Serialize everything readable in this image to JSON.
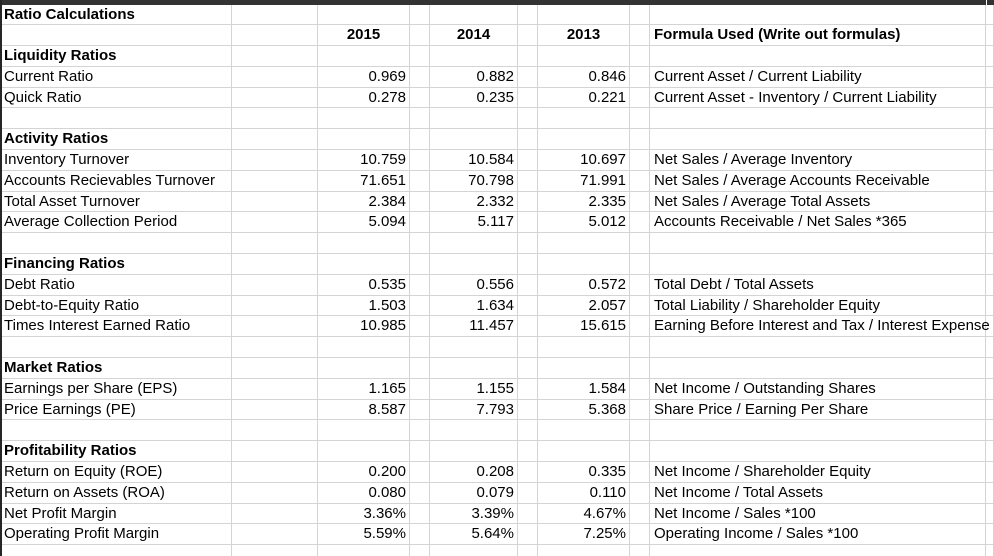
{
  "sheet": {
    "title": "Ratio Calculations",
    "header": {
      "years": [
        "2015",
        "2014",
        "2013"
      ],
      "formula_label": "Formula Used (Write out formulas)"
    },
    "sections": [
      {
        "name": "Liquidity Ratios",
        "rows": [
          {
            "label": "Current Ratio",
            "values": [
              "0.969",
              "0.882",
              "0.846"
            ],
            "formula": "Current Asset / Current Liability"
          },
          {
            "label": "Quick Ratio",
            "values": [
              "0.278",
              "0.235",
              "0.221"
            ],
            "formula": "Current Asset - Inventory / Current Liability"
          }
        ]
      },
      {
        "name": "Activity Ratios",
        "rows": [
          {
            "label": "Inventory Turnover",
            "values": [
              "10.759",
              "10.584",
              "10.697"
            ],
            "formula": "Net Sales / Average Inventory"
          },
          {
            "label": "Accounts Recievables Turnover",
            "values": [
              "71.651",
              "70.798",
              "71.991"
            ],
            "formula": "Net Sales / Average Accounts Receivable"
          },
          {
            "label": "Total Asset Turnover",
            "values": [
              "2.384",
              "2.332",
              "2.335"
            ],
            "formula": "Net Sales / Average Total Assets"
          },
          {
            "label": "Average Collection Period",
            "values": [
              "5.094",
              "5.117",
              "5.012"
            ],
            "formula": "Accounts Receivable / Net Sales *365"
          }
        ]
      },
      {
        "name": "Financing Ratios",
        "rows": [
          {
            "label": "Debt Ratio",
            "values": [
              "0.535",
              "0.556",
              "0.572"
            ],
            "formula": "Total Debt / Total Assets"
          },
          {
            "label": "Debt-to-Equity Ratio",
            "values": [
              "1.503",
              "1.634",
              "2.057"
            ],
            "formula": "Total Liability / Shareholder Equity"
          },
          {
            "label": "Times Interest Earned Ratio",
            "values": [
              "10.985",
              "11.457",
              "15.615"
            ],
            "formula": "Earning Before Interest and Tax / Interest Expense"
          }
        ]
      },
      {
        "name": "Market Ratios",
        "rows": [
          {
            "label": "Earnings per Share (EPS)",
            "values": [
              "1.165",
              "1.155",
              "1.584"
            ],
            "formula": "Net Income / Outstanding Shares"
          },
          {
            "label": "Price Earnings (PE)",
            "values": [
              "8.587",
              "7.793",
              "5.368"
            ],
            "formula": "Share Price / Earning Per Share"
          }
        ]
      },
      {
        "name": "Profitability Ratios",
        "rows": [
          {
            "label": "Return on Equity (ROE)",
            "values": [
              "0.200",
              "0.208",
              "0.335"
            ],
            "formula": "Net Income / Shareholder Equity"
          },
          {
            "label": "Return on Assets (ROA)",
            "values": [
              "0.080",
              "0.079",
              "0.110"
            ],
            "formula": "Net Income / Total Assets"
          },
          {
            "label": "Net Profit Margin",
            "values": [
              "3.36%",
              "3.39%",
              "4.67%"
            ],
            "formula": "Net Income / Sales *100"
          },
          {
            "label": "Operating Profit Margin",
            "values": [
              "5.59%",
              "5.64%",
              "7.25%"
            ],
            "formula": "Operating Income / Sales *100"
          }
        ]
      }
    ]
  },
  "colors": {
    "background": "#ffffff",
    "text": "#000000",
    "gridline": "#d4d4d4",
    "top_strip": "#333333",
    "left_edge": "#262626"
  }
}
